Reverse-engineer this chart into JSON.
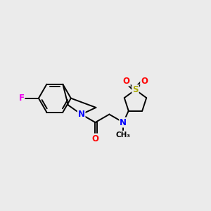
{
  "bg_color": "#ebebeb",
  "bond_color": "#000000",
  "atom_colors": {
    "F": "#ee00ee",
    "N": "#0000ff",
    "O": "#ff0000",
    "S": "#aaaa00",
    "C": "#000000"
  },
  "bond_lw": 1.4,
  "font_size": 8.5
}
